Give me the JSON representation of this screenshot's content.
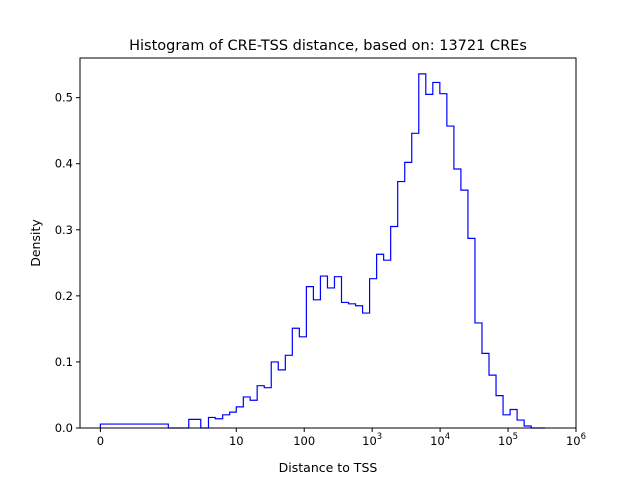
{
  "chart_data": {
    "type": "histogram",
    "title": "Histogram of CRE-TSS distance, based on: 13721 CREs",
    "xlabel": "Distance to TSS",
    "ylabel": "Density",
    "x_scale": "symlog",
    "xlim": [
      -0.3,
      1000000
    ],
    "ylim": [
      0,
      0.56
    ],
    "x_ticks": [
      {
        "value": 0,
        "label": "0"
      },
      {
        "value": 10,
        "label": "10"
      },
      {
        "value": 100,
        "label": "100"
      },
      {
        "value": 1000,
        "base": "10",
        "exp": "3"
      },
      {
        "value": 10000,
        "base": "10",
        "exp": "4"
      },
      {
        "value": 100000,
        "base": "10",
        "exp": "5"
      },
      {
        "value": 1000000,
        "base": "10",
        "exp": "6"
      }
    ],
    "y_ticks": [
      {
        "value": 0.0,
        "label": "0.0"
      },
      {
        "value": 0.1,
        "label": "0.1"
      },
      {
        "value": 0.2,
        "label": "0.2"
      },
      {
        "value": 0.3,
        "label": "0.3"
      },
      {
        "value": 0.4,
        "label": "0.4"
      },
      {
        "value": 0.5,
        "label": "0.5"
      }
    ],
    "bin_edges": [
      0,
      1.0,
      2.0,
      3.0,
      3.9,
      4.9,
      6.3,
      8.0,
      10.0,
      12.7,
      16.0,
      20.3,
      25.8,
      32.7,
      41.5,
      52.7,
      66.8,
      84.8,
      107.6,
      136.5,
      173.2,
      219.8,
      278.8,
      353.8,
      448.9,
      569.5,
      722.6,
      916.8,
      1163.1,
      1475.6,
      1872.3,
      2375.4,
      3013.8,
      3823.9,
      4851.6,
      6155.4,
      7809.7,
      9908.7,
      12572,
      15951,
      20238,
      25677,
      32577,
      41332,
      52441,
      66535,
      84418,
      107106,
      135892,
      172415,
      218755,
      277548,
      352144
    ],
    "values": [
      0.006,
      0.0,
      0.013,
      0.0,
      0.016,
      0.014,
      0.02,
      0.024,
      0.032,
      0.047,
      0.042,
      0.064,
      0.061,
      0.1,
      0.088,
      0.11,
      0.151,
      0.138,
      0.214,
      0.194,
      0.23,
      0.212,
      0.229,
      0.19,
      0.188,
      0.185,
      0.174,
      0.226,
      0.263,
      0.254,
      0.305,
      0.373,
      0.402,
      0.446,
      0.536,
      0.505,
      0.523,
      0.506,
      0.457,
      0.392,
      0.36,
      0.287,
      0.159,
      0.113,
      0.08,
      0.049,
      0.02,
      0.028,
      0.012,
      0.003,
      0.0,
      0.0
    ],
    "color": "#0000ff",
    "grid": false,
    "legend": "none"
  }
}
